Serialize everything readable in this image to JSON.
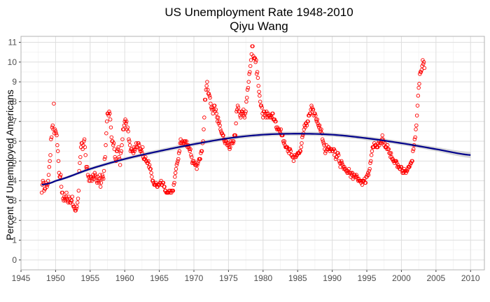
{
  "chart_data": {
    "type": "scatter",
    "title": "US Unemployment Rate 1948-2010",
    "subtitle": "Qiyu Wang",
    "xlabel": "",
    "ylabel": "Percent of Unemployed Americans",
    "xlim": [
      1945,
      2012
    ],
    "ylim": [
      -0.5,
      11.3
    ],
    "x_ticks": [
      1945,
      1950,
      1955,
      1960,
      1965,
      1970,
      1975,
      1980,
      1985,
      1990,
      1995,
      2000,
      2005,
      2010
    ],
    "y_ticks": [
      0,
      1,
      2,
      3,
      4,
      5,
      6,
      7,
      8,
      9,
      10,
      11
    ],
    "grid": true,
    "legend": "none",
    "colors": {
      "points": "#ff0000",
      "trend": "#00008b",
      "ribbon": "#bdbdbd",
      "grid_major": "#dedede",
      "grid_minor": "#eeeeee",
      "panel_border": "#b3b3b3"
    },
    "series": [
      {
        "type": "points",
        "monthly_from": 1948,
        "values": [
          3.4,
          3.8,
          4.0,
          3.9,
          3.5,
          3.6,
          3.6,
          3.9,
          3.8,
          3.7,
          3.8,
          4.0,
          4.3,
          4.7,
          5.0,
          5.3,
          6.1,
          6.2,
          6.7,
          6.8,
          6.6,
          7.9,
          6.4,
          6.6,
          6.5,
          6.4,
          6.3,
          5.8,
          5.5,
          5.0,
          4.4,
          4.2,
          4.2,
          4.3,
          3.7,
          3.4,
          3.4,
          3.1,
          3.0,
          3.2,
          3.1,
          3.0,
          3.2,
          3.4,
          3.1,
          3.0,
          2.9,
          3.2,
          3.1,
          2.9,
          2.9,
          3.0,
          3.0,
          3.2,
          2.8,
          2.7,
          2.7,
          2.6,
          2.5,
          2.5,
          2.6,
          2.7,
          2.9,
          3.1,
          3.5,
          4.5,
          4.9,
          5.2,
          5.7,
          5.9,
          5.9,
          5.6,
          5.8,
          6.0,
          6.1,
          5.7,
          5.3,
          4.7,
          4.6,
          4.7,
          4.3,
          4.2,
          4.0,
          4.2,
          4.0,
          4.2,
          4.2,
          4.0,
          4.1,
          4.3,
          4.2,
          4.1,
          4.4,
          4.3,
          4.2,
          4.0,
          3.9,
          4.2,
          4.0,
          3.9,
          4.1,
          4.3,
          3.7,
          3.9,
          4.1,
          4.3,
          4.2,
          4.1,
          4.5,
          5.1,
          5.2,
          5.8,
          6.4,
          7.0,
          7.4,
          7.4,
          7.3,
          7.5,
          7.4,
          7.1,
          6.7,
          6.2,
          6.0,
          6.0,
          5.8,
          5.9,
          5.6,
          5.2,
          5.1,
          5.0,
          5.5,
          5.5,
          5.6,
          5.7,
          5.2,
          5.1,
          4.8,
          5.4,
          5.5,
          5.8,
          6.1,
          6.6,
          6.6,
          6.8,
          7.0,
          7.1,
          6.9,
          7.0,
          6.6,
          6.7,
          6.5,
          6.1,
          6.0,
          5.8,
          5.5,
          5.6,
          5.6,
          5.5,
          5.5,
          5.4,
          5.7,
          5.5,
          5.6,
          5.7,
          5.9,
          5.7,
          5.7,
          5.9,
          5.9,
          5.8,
          5.6,
          5.5,
          5.6,
          5.5,
          5.4,
          5.7,
          5.2,
          5.1,
          5.1,
          5.1,
          5.2,
          5.0,
          5.0,
          4.9,
          4.9,
          5.0,
          4.7,
          4.8,
          4.6,
          4.6,
          4.4,
          4.2,
          4.0,
          4.0,
          3.9,
          3.8,
          3.8,
          3.8,
          3.9,
          3.8,
          3.7,
          3.7,
          3.8,
          3.8,
          3.8,
          3.9,
          3.9,
          4.0,
          3.8,
          3.8,
          3.9,
          3.9,
          3.7,
          3.7,
          3.5,
          3.5,
          3.4,
          3.4,
          3.4,
          3.4,
          3.4,
          3.5,
          3.5,
          3.4,
          3.5,
          3.4,
          3.5,
          3.5,
          3.5,
          3.8,
          3.9,
          4.2,
          4.4,
          4.6,
          4.8,
          4.9,
          5.0,
          5.1,
          5.4,
          5.5,
          5.9,
          6.1,
          5.9,
          5.9,
          6.0,
          5.9,
          5.9,
          6.0,
          6.0,
          6.0,
          5.8,
          6.0,
          5.8,
          5.7,
          5.8,
          5.7,
          5.6,
          5.5,
          5.6,
          5.3,
          5.2,
          4.9,
          5.0,
          4.9,
          5.0,
          4.9,
          4.8,
          4.8,
          4.8,
          4.6,
          4.8,
          4.9,
          5.0,
          5.1,
          5.1,
          5.1,
          5.4,
          5.5,
          5.5,
          5.9,
          6.0,
          6.6,
          7.2,
          8.1,
          8.1,
          8.6,
          8.8,
          9.0,
          8.6,
          8.4,
          8.4,
          8.3,
          8.2,
          7.9,
          7.7,
          7.6,
          7.7,
          7.4,
          7.6,
          7.8,
          7.8,
          7.5,
          7.6,
          7.4,
          7.2,
          7.0,
          7.2,
          6.9,
          7.0,
          6.8,
          6.6,
          6.5,
          6.4,
          6.4,
          6.3,
          6.3,
          6.1,
          6.0,
          5.9,
          6.0,
          6.0,
          5.9,
          5.8,
          5.9,
          5.8,
          5.7,
          5.6,
          5.7,
          6.0,
          5.9,
          5.9,
          6.0,
          5.9,
          6.0,
          6.3,
          6.3,
          6.3,
          6.9,
          7.5,
          7.6,
          7.8,
          7.7,
          7.5,
          7.5,
          7.3,
          7.2,
          7.4,
          7.5,
          7.5,
          7.4,
          7.6,
          7.3,
          7.2,
          7.4,
          7.5,
          8.0,
          8.2,
          8.6,
          8.7,
          9.0,
          9.4,
          9.5,
          9.8,
          10.1,
          10.4,
          10.8,
          10.8,
          10.3,
          10.2,
          10.2,
          10.2,
          10.0,
          10.1,
          9.4,
          9.5,
          9.2,
          8.8,
          8.5,
          8.3,
          8.0,
          7.8,
          7.8,
          7.7,
          7.4,
          7.2,
          7.5,
          7.5,
          7.3,
          7.4,
          7.2,
          7.5,
          7.4,
          7.2,
          7.4,
          7.3,
          7.3,
          7.2,
          7.2,
          7.3,
          7.2,
          7.4,
          7.4,
          7.1,
          7.1,
          7.1,
          7.0,
          7.0,
          6.7,
          6.6,
          6.7,
          6.6,
          6.6,
          6.6,
          6.5,
          6.4,
          6.6,
          6.3,
          6.3,
          6.3,
          6.0,
          5.9,
          6.0,
          5.8,
          5.7,
          5.7,
          5.7,
          5.7,
          5.5,
          5.6,
          5.4,
          5.6,
          5.6,
          5.5,
          5.3,
          5.3,
          5.2,
          5.2,
          5.0,
          5.2,
          5.3,
          5.2,
          5.2,
          5.3,
          5.3,
          5.4,
          5.4,
          5.4,
          5.4,
          5.5,
          5.5,
          5.7,
          5.9,
          6.2,
          6.3,
          6.4,
          6.6,
          6.8,
          6.7,
          6.9,
          6.9,
          6.8,
          7.0,
          7.0,
          7.3,
          7.3,
          7.4,
          7.4,
          7.6,
          7.8,
          7.7,
          7.6,
          7.6,
          7.3,
          7.4,
          7.4,
          7.3,
          7.1,
          7.0,
          7.1,
          6.9,
          6.8,
          6.7,
          6.8,
          6.6,
          6.5,
          6.6,
          6.4,
          6.1,
          6.0,
          5.9,
          5.8,
          5.6,
          5.4,
          5.5,
          5.8,
          5.6,
          5.6,
          5.7,
          5.7,
          5.6,
          5.5,
          5.6,
          5.6,
          5.6,
          5.5,
          5.5,
          5.6,
          5.6,
          5.3,
          5.5,
          5.1,
          5.2,
          5.2,
          5.4,
          5.4,
          5.3,
          5.0,
          4.9,
          4.7,
          4.9,
          5.0,
          4.9,
          4.8,
          4.7,
          4.6,
          4.7,
          4.6,
          4.6,
          4.5,
          4.5,
          4.4,
          4.5,
          4.4,
          4.6,
          4.4,
          4.4,
          4.2,
          4.4,
          4.3,
          4.4,
          4.1,
          4.2,
          4.3,
          4.3,
          4.2,
          4.2,
          4.3,
          4.2,
          4.1,
          4.0,
          4.1,
          4.0,
          4.0,
          4.0,
          3.9,
          4.0,
          3.8,
          4.0,
          4.0,
          4.0,
          4.1,
          3.9,
          3.9,
          4.2,
          4.2,
          4.3,
          4.4,
          4.3,
          4.5,
          4.6,
          4.9,
          5.0,
          5.3,
          5.5,
          5.7,
          5.7,
          5.7,
          5.9,
          5.8,
          5.8,
          5.8,
          5.7,
          5.7,
          5.7,
          5.9,
          6.0,
          5.8,
          5.9,
          5.9,
          6.0,
          6.1,
          6.3,
          6.1,
          6.0,
          5.8,
          5.9,
          5.7,
          5.7,
          5.7,
          5.6,
          5.8,
          5.6,
          5.6,
          5.4,
          5.4,
          5.2,
          5.4,
          5.2,
          5.1,
          5.1,
          5.0,
          5.0,
          4.9,
          5.0,
          5.0,
          5.0,
          4.9,
          4.7,
          4.8,
          4.7,
          4.7,
          4.6,
          4.6,
          4.7,
          4.7,
          4.5,
          4.4,
          4.5,
          4.4,
          4.6,
          4.5,
          4.5,
          4.4,
          4.5,
          4.5,
          4.6,
          4.7,
          4.7,
          4.7,
          4.8,
          4.9,
          4.9,
          5.0,
          5.0,
          5.5,
          5.6,
          5.8,
          6.1,
          6.2,
          6.6,
          6.8,
          7.3,
          7.8,
          8.3,
          8.7,
          8.9,
          9.4,
          9.5,
          9.5,
          9.6,
          9.8,
          10.1,
          9.9,
          10.0,
          9.7
        ]
      },
      {
        "type": "trend",
        "x": [
          1948,
          1950,
          1955,
          1960,
          1965,
          1970,
          1975,
          1980,
          1985,
          1990,
          1995,
          2000,
          2005,
          2010
        ],
        "values": [
          3.8,
          4.0,
          4.6,
          5.1,
          5.5,
          5.85,
          6.15,
          6.33,
          6.38,
          6.33,
          6.15,
          5.9,
          5.6,
          5.3
        ],
        "band": [
          0.05,
          0.06,
          0.08,
          0.09,
          0.1,
          0.1,
          0.1,
          0.1,
          0.1,
          0.1,
          0.1,
          0.1,
          0.11,
          0.15
        ]
      }
    ]
  }
}
